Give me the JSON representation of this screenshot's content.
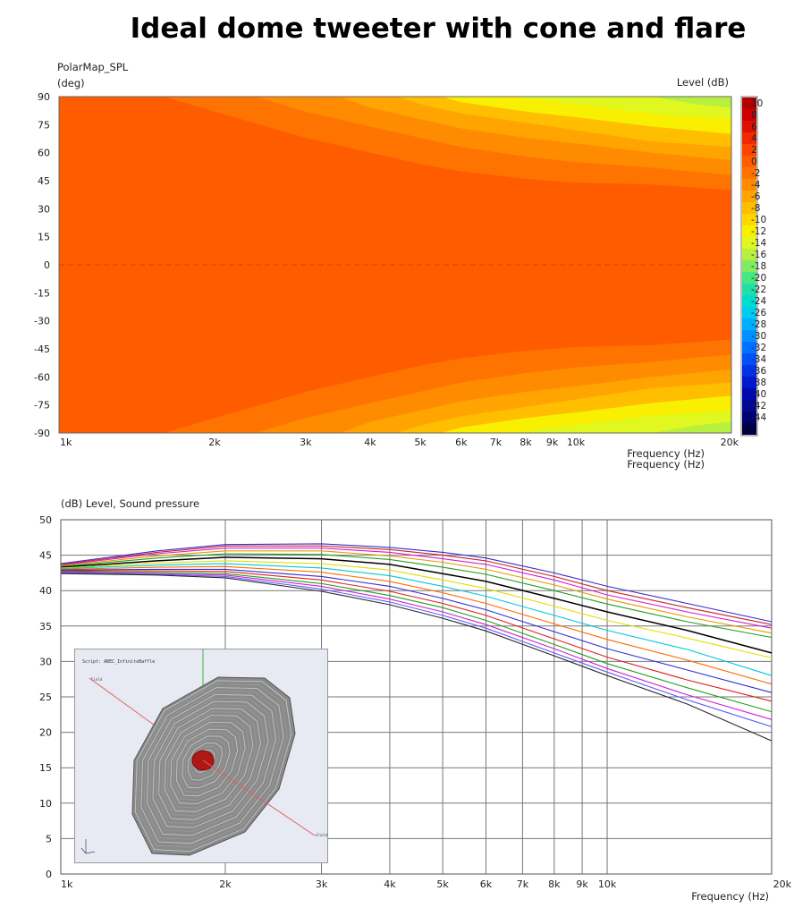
{
  "page": {
    "title": "Ideal dome tweeter with cone and flare"
  },
  "polar_map": {
    "title": "PolarMap_SPL",
    "y_unit": "(deg)",
    "level_label": "Level  (dB)",
    "x_label_1": "Frequency  (Hz)",
    "x_label_2": "Frequency  (Hz)",
    "x_ticks": [
      {
        "f": 1000,
        "label": "1k"
      },
      {
        "f": 2000,
        "label": "2k"
      },
      {
        "f": 3000,
        "label": "3k"
      },
      {
        "f": 4000,
        "label": "4k"
      },
      {
        "f": 5000,
        "label": "5k"
      },
      {
        "f": 6000,
        "label": "6k"
      },
      {
        "f": 7000,
        "label": "7k"
      },
      {
        "f": 8000,
        "label": "8k"
      },
      {
        "f": 9000,
        "label": "9k"
      },
      {
        "f": 10000,
        "label": "10k"
      },
      {
        "f": 20000,
        "label": "20k"
      }
    ],
    "y_ticks": [
      "90",
      "75",
      "60",
      "45",
      "30",
      "15",
      "0",
      "-15",
      "-30",
      "-45",
      "-60",
      "-75",
      "-90"
    ],
    "colorbar": [
      {
        "label": "10",
        "color": "#b40000"
      },
      {
        "label": "8",
        "color": "#cc0000"
      },
      {
        "label": "6",
        "color": "#e01000"
      },
      {
        "label": "4",
        "color": "#f02a00"
      },
      {
        "label": "2",
        "color": "#fc4400"
      },
      {
        "label": "0",
        "color": "#ff5c00"
      },
      {
        "label": "-2",
        "color": "#ff7400"
      },
      {
        "label": "-4",
        "color": "#ff8c00"
      },
      {
        "label": "-6",
        "color": "#ffa400"
      },
      {
        "label": "-8",
        "color": "#ffbe00"
      },
      {
        "label": "-10",
        "color": "#ffd800"
      },
      {
        "label": "-12",
        "color": "#f8f000"
      },
      {
        "label": "-14",
        "color": "#e0f820"
      },
      {
        "label": "-16",
        "color": "#b8f040"
      },
      {
        "label": "-18",
        "color": "#80ec60"
      },
      {
        "label": "-20",
        "color": "#48e880"
      },
      {
        "label": "-22",
        "color": "#20e0a8"
      },
      {
        "label": "-24",
        "color": "#00dcd0"
      },
      {
        "label": "-26",
        "color": "#00ccf0"
      },
      {
        "label": "-28",
        "color": "#00b0ff"
      },
      {
        "label": "-30",
        "color": "#0090ff"
      },
      {
        "label": "-32",
        "color": "#0070ff"
      },
      {
        "label": "-34",
        "color": "#0050f8"
      },
      {
        "label": "-36",
        "color": "#0030e8"
      },
      {
        "label": "-38",
        "color": "#0018d0"
      },
      {
        "label": "-40",
        "color": "#0008b0"
      },
      {
        "label": "-42",
        "color": "#000890"
      },
      {
        "label": "-44",
        "color": "#000070"
      },
      {
        "label": "",
        "color": "#000040"
      }
    ]
  },
  "spl_chart": {
    "title": "(dB)  Level, Sound pressure",
    "x_label": "Frequency  (Hz)",
    "y_ticks": [
      "0",
      "5",
      "10",
      "15",
      "20",
      "25",
      "30",
      "35",
      "40",
      "45",
      "50"
    ],
    "x_ticks": [
      {
        "f": 1000,
        "label": "1k"
      },
      {
        "f": 2000,
        "label": "2k"
      },
      {
        "f": 3000,
        "label": "3k"
      },
      {
        "f": 4000,
        "label": "4k"
      },
      {
        "f": 5000,
        "label": "5k"
      },
      {
        "f": 6000,
        "label": "6k"
      },
      {
        "f": 7000,
        "label": "7k"
      },
      {
        "f": 8000,
        "label": "8k"
      },
      {
        "f": 9000,
        "label": "9k"
      },
      {
        "f": 10000,
        "label": "10k"
      },
      {
        "f": 20000,
        "label": "20k"
      }
    ]
  },
  "inset": {
    "script_text": "Script:     ABEC_InfiniteBaffle",
    "label_a": "Field",
    "label_b": "+Field"
  },
  "chart_data": [
    {
      "type": "heatmap",
      "title": "PolarMap_SPL",
      "xlabel": "Frequency  (Hz)",
      "ylabel": "(deg)",
      "x_scale": "log",
      "xlim": [
        1000,
        20000
      ],
      "ylim": [
        -90,
        90
      ],
      "colorbar_label": "Level  (dB)",
      "colorbar_range": [
        -44,
        10
      ],
      "contours": [
        {
          "level": -2,
          "color": "#ff5c00",
          "edge_deg": [
            [
              1000,
              90
            ],
            [
              1200,
              90
            ],
            [
              2000,
              70
            ],
            [
              3000,
              54
            ],
            [
              4000,
              46
            ],
            [
              5000,
              42
            ],
            [
              6000,
              38
            ],
            [
              8000,
              35
            ],
            [
              10000,
              32
            ],
            [
              14000,
              30
            ],
            [
              20000,
              28
            ]
          ]
        },
        {
          "level": -4,
          "color": "#ff7400",
          "edge_deg": [
            [
              1200,
              90
            ],
            [
              1600,
              90
            ],
            [
              2000,
              82
            ],
            [
              3000,
              68
            ],
            [
              4000,
              60
            ],
            [
              5000,
              54
            ],
            [
              6000,
              50
            ],
            [
              8000,
              46
            ],
            [
              10000,
              44
            ],
            [
              14000,
              43
            ],
            [
              20000,
              40
            ]
          ]
        },
        {
          "level": -6,
          "color": "#ff8c00",
          "edge_deg": [
            [
              2400,
              90
            ],
            [
              3000,
              82
            ],
            [
              4000,
              74
            ],
            [
              5000,
              68
            ],
            [
              6000,
              63
            ],
            [
              8000,
              58
            ],
            [
              10000,
              55
            ],
            [
              14000,
              52
            ],
            [
              20000,
              48
            ]
          ]
        },
        {
          "level": -8,
          "color": "#ffa400",
          "edge_deg": [
            [
              3500,
              90
            ],
            [
              4000,
              84
            ],
            [
              5000,
              78
            ],
            [
              6000,
              73
            ],
            [
              8000,
              68
            ],
            [
              10000,
              65
            ],
            [
              14000,
              60
            ],
            [
              20000,
              56
            ]
          ]
        },
        {
          "level": -10,
          "color": "#ffbe00",
          "edge_deg": [
            [
              4500,
              90
            ],
            [
              5000,
              86
            ],
            [
              6000,
              81
            ],
            [
              8000,
              76
            ],
            [
              10000,
              72
            ],
            [
              14000,
              66
            ],
            [
              20000,
              63
            ]
          ]
        },
        {
          "level": -12,
          "color": "#f8f000",
          "edge_deg": [
            [
              5500,
              90
            ],
            [
              6000,
              87
            ],
            [
              8000,
              82
            ],
            [
              10000,
              79
            ],
            [
              14000,
              74
            ],
            [
              20000,
              70
            ]
          ]
        },
        {
          "level": -14,
          "color": "#e0f820",
          "edge_deg": [
            [
              7500,
              90
            ],
            [
              10000,
              86
            ],
            [
              14000,
              81
            ],
            [
              20000,
              78
            ]
          ]
        },
        {
          "level": -16,
          "color": "#b8f040",
          "edge_deg": [
            [
              14000,
              90
            ],
            [
              17000,
              86
            ],
            [
              20000,
              84
            ]
          ]
        }
      ]
    },
    {
      "type": "line",
      "title": "(dB)  Level, Sound pressure",
      "xlabel": "Frequency  (Hz)",
      "ylabel": "(dB)",
      "x_scale": "log",
      "xlim": [
        1000,
        20000
      ],
      "ylim": [
        0,
        50
      ],
      "x": [
        1000,
        1500,
        2000,
        3000,
        4000,
        5000,
        6000,
        8000,
        10000,
        14000,
        20000
      ],
      "series": [
        {
          "color": "#3030d0",
          "values": [
            43.8,
            45.6,
            46.5,
            46.6,
            46.1,
            45.4,
            44.6,
            42.5,
            40.6,
            38.2,
            35.6
          ]
        },
        {
          "color": "#cc2222",
          "values": [
            43.7,
            45.4,
            46.3,
            46.3,
            45.8,
            45.0,
            44.2,
            42.0,
            40.0,
            37.6,
            35.2
          ]
        },
        {
          "color": "#d020d0",
          "values": [
            43.6,
            45.2,
            46.0,
            46.0,
            45.4,
            44.5,
            43.7,
            41.5,
            39.4,
            37.0,
            34.7
          ]
        },
        {
          "color": "#e89a00",
          "values": [
            43.5,
            44.9,
            45.6,
            45.6,
            44.9,
            44.0,
            43.0,
            40.8,
            38.8,
            36.3,
            34.0
          ]
        },
        {
          "color": "#20a020",
          "values": [
            43.4,
            44.6,
            45.2,
            45.1,
            44.4,
            43.3,
            42.3,
            40.0,
            38.1,
            35.6,
            33.4
          ]
        },
        {
          "color": "#000000",
          "values": [
            43.3,
            44.2,
            44.7,
            44.5,
            43.7,
            42.4,
            41.3,
            38.9,
            37.0,
            34.4,
            31.2
          ]
        },
        {
          "color": "#e0e000",
          "values": [
            43.2,
            43.9,
            44.2,
            43.8,
            42.9,
            41.5,
            40.3,
            37.8,
            35.8,
            33.3,
            30.5
          ]
        },
        {
          "color": "#00c8d8",
          "values": [
            43.1,
            43.6,
            43.8,
            43.2,
            42.1,
            40.6,
            39.2,
            36.5,
            34.4,
            31.7,
            28.0
          ]
        },
        {
          "color": "#ff6a00",
          "values": [
            43.0,
            43.3,
            43.4,
            42.6,
            41.3,
            39.7,
            38.2,
            35.3,
            33.1,
            30.2,
            26.8
          ]
        },
        {
          "color": "#3030d0",
          "values": [
            42.9,
            43.0,
            43.0,
            42.0,
            40.6,
            38.9,
            37.3,
            34.2,
            31.8,
            28.8,
            25.6
          ]
        },
        {
          "color": "#e02020",
          "values": [
            42.8,
            42.8,
            42.7,
            41.5,
            39.9,
            38.2,
            36.5,
            33.2,
            30.6,
            27.4,
            24.4
          ]
        },
        {
          "color": "#20a020",
          "values": [
            42.7,
            42.6,
            42.4,
            41.0,
            39.3,
            37.6,
            35.8,
            32.4,
            29.7,
            26.3,
            22.9
          ]
        },
        {
          "color": "#d020d0",
          "values": [
            42.6,
            42.4,
            42.2,
            40.6,
            38.8,
            37.0,
            35.2,
            31.8,
            29.0,
            25.3,
            21.8
          ]
        },
        {
          "color": "#6060ff",
          "values": [
            42.5,
            42.3,
            42.0,
            40.2,
            38.4,
            36.5,
            34.7,
            31.2,
            28.5,
            24.6,
            20.8
          ]
        },
        {
          "color": "#2a2a2a",
          "values": [
            42.4,
            42.2,
            41.8,
            39.9,
            38.0,
            36.1,
            34.3,
            30.8,
            28.0,
            24.0,
            18.8
          ]
        }
      ]
    }
  ]
}
